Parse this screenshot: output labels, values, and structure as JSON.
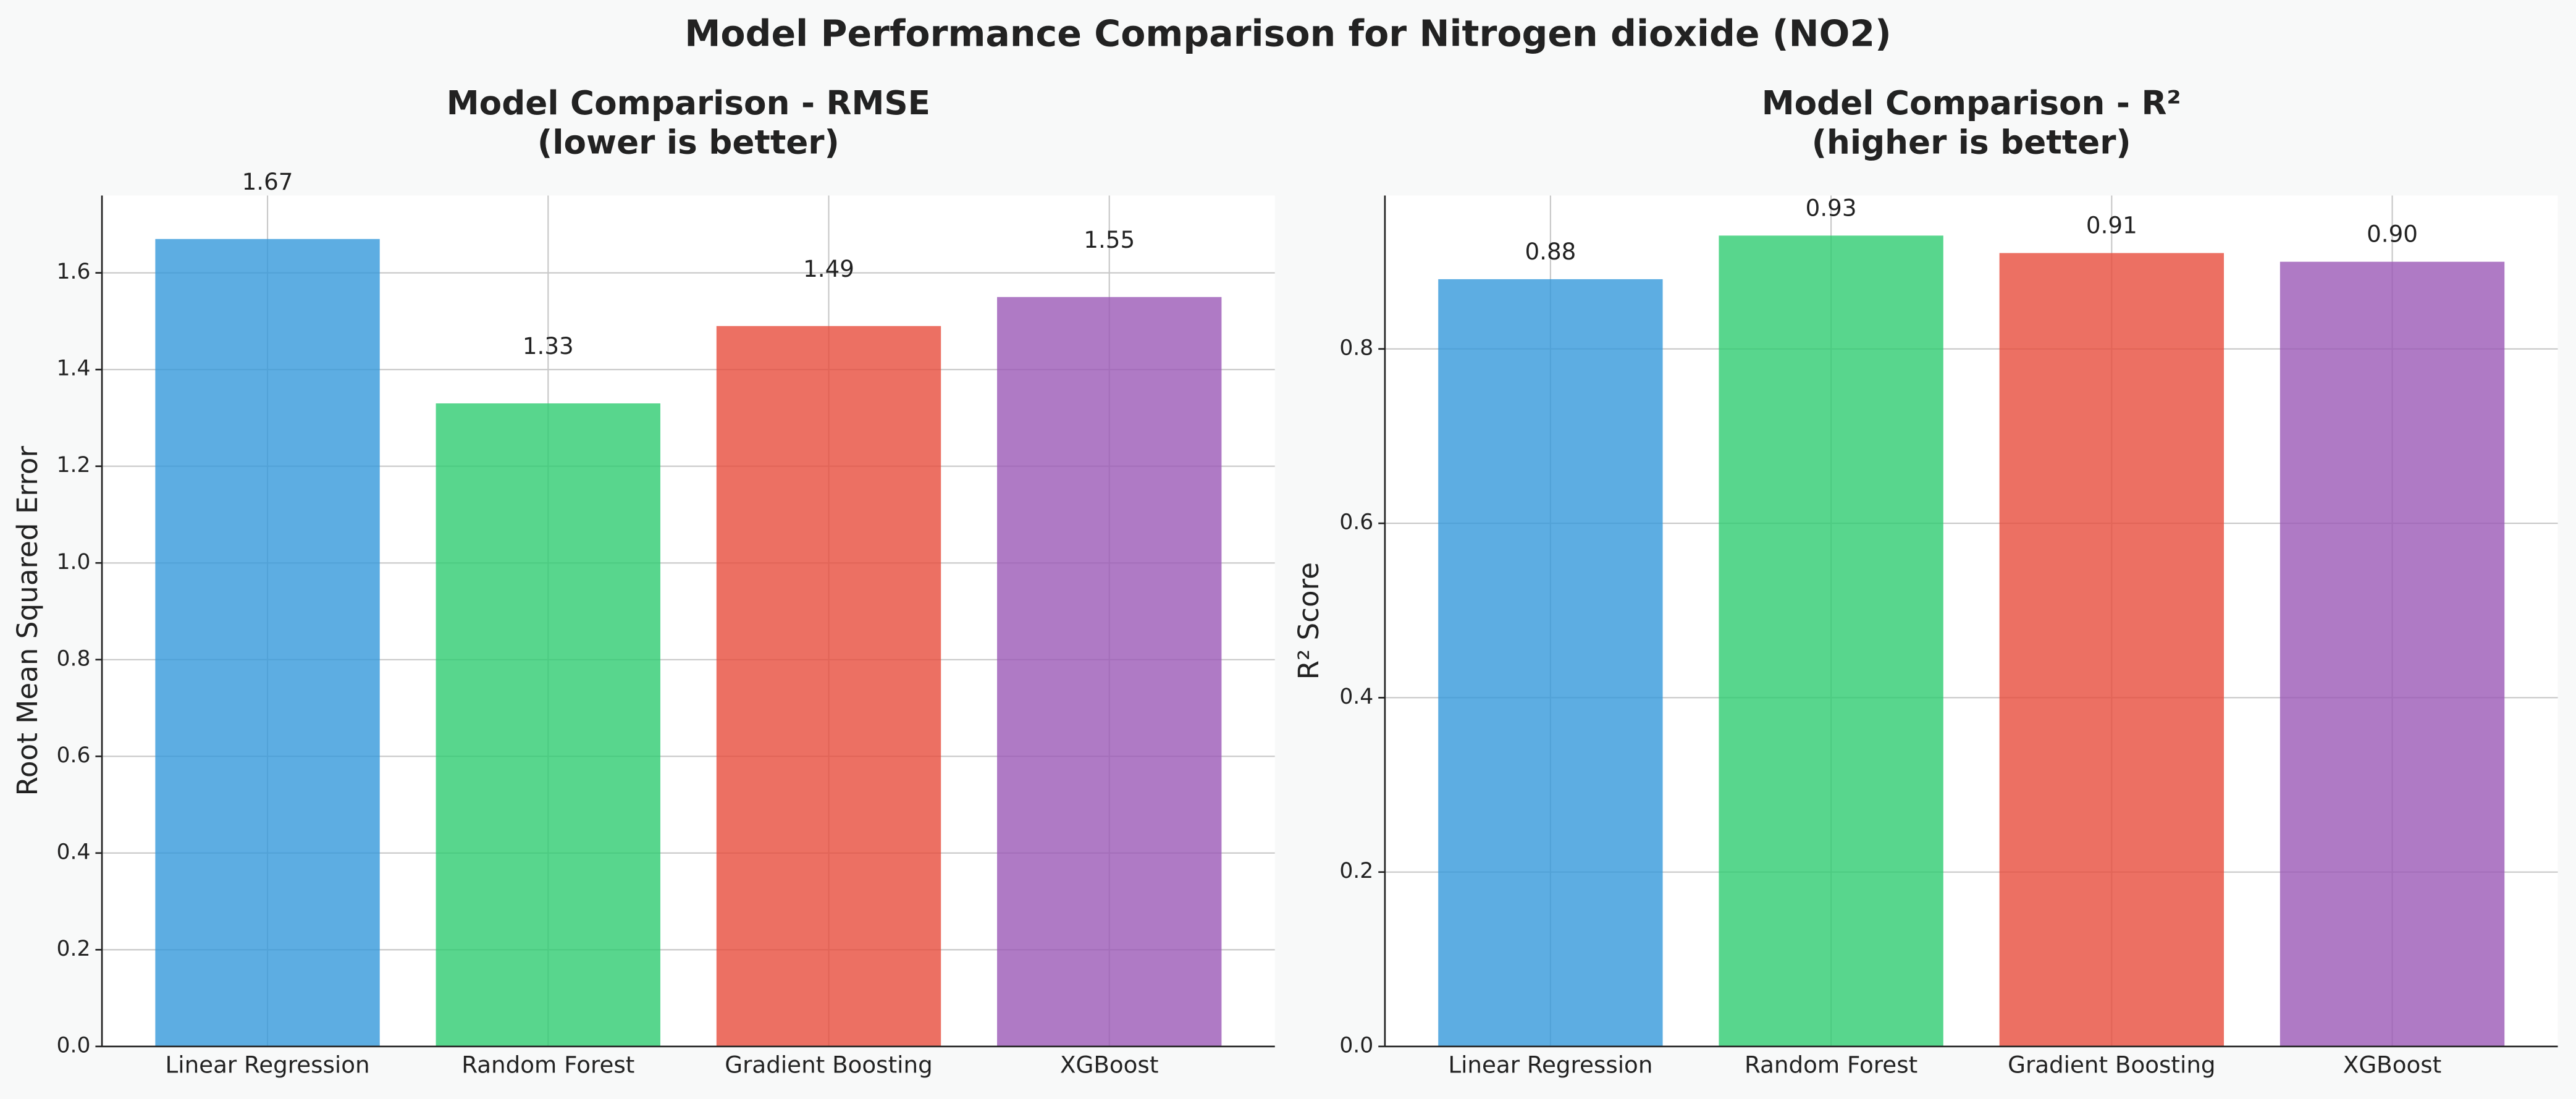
{
  "title": "Model Performance Comparison for Nitrogen dioxide (NO2)",
  "chart_data": [
    {
      "type": "bar",
      "title": "Model Comparison - RMSE",
      "subtitle": "(lower is better)",
      "y_label": "Root Mean Squared Error",
      "categories": [
        "Linear Regression",
        "Random Forest",
        "Gradient Boosting",
        "XGBoost"
      ],
      "values": [
        1.67,
        1.33,
        1.49,
        1.55
      ],
      "colors": [
        "#3498db",
        "#2ecc71",
        "#e74c3c",
        "#9b59b6"
      ],
      "ylim": [
        0,
        1.76
      ],
      "yticks": [
        {
          "value": 0,
          "label": "0.0"
        },
        {
          "value": 0.2,
          "label": "0.2"
        },
        {
          "value": 0.4,
          "label": "0.4"
        },
        {
          "value": 0.6,
          "label": "0.6"
        },
        {
          "value": 0.8,
          "label": "0.8"
        },
        {
          "value": 1,
          "label": "1.0"
        },
        {
          "value": 1.2,
          "label": "1.2"
        },
        {
          "value": 1.4,
          "label": "1.4"
        },
        {
          "value": 1.6,
          "label": "1.6"
        }
      ],
      "grid": true
    },
    {
      "type": "bar",
      "title": "Model Comparison - R²",
      "subtitle": "(higher is better)",
      "y_label": "R² Score",
      "categories": [
        "Linear Regression",
        "Random Forest",
        "Gradient Boosting",
        "XGBoost"
      ],
      "values": [
        0.88,
        0.93,
        0.91,
        0.9
      ],
      "value_labels": [
        "0.88",
        "0.93",
        "0.91",
        "0.90"
      ],
      "colors": [
        "#3498db",
        "#2ecc71",
        "#e74c3c",
        "#9b59b6"
      ],
      "ylim": [
        0,
        0.976
      ],
      "yticks": [
        {
          "value": 0,
          "label": "0.0"
        },
        {
          "value": 0.2,
          "label": "0.2"
        },
        {
          "value": 0.4,
          "label": "0.4"
        },
        {
          "value": 0.6,
          "label": "0.6"
        },
        {
          "value": 0.8,
          "label": "0.8"
        }
      ],
      "grid": true
    }
  ]
}
